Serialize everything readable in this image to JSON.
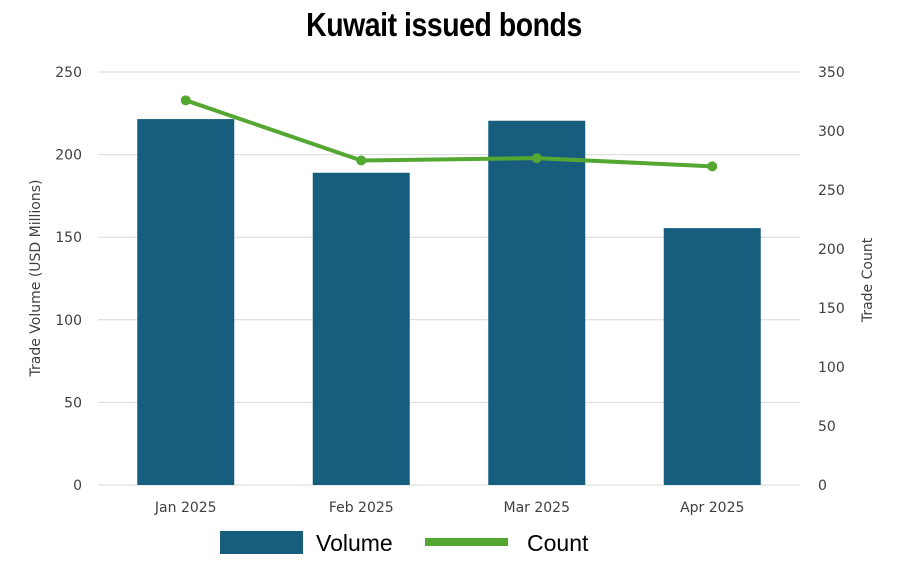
{
  "chart_data": {
    "type": "bar",
    "title": "Kuwait issued bonds",
    "categories": [
      "Jan 2025",
      "Feb 2025",
      "Mar 2025",
      "Apr 2025"
    ],
    "series": [
      {
        "name": "Volume",
        "type": "bar",
        "axis": "left",
        "color": "#175e7e",
        "values": [
          221.5,
          189,
          220.5,
          155.5
        ]
      },
      {
        "name": "Count",
        "type": "line",
        "axis": "right",
        "color": "#54a832",
        "values": [
          326,
          275,
          277,
          270
        ]
      }
    ],
    "ylabel": "Trade Volume (USD Millions)",
    "ylim": [
      0,
      250
    ],
    "yticks": [
      0,
      50,
      100,
      150,
      200,
      250
    ],
    "y2label": "Trade Count",
    "y2lim": [
      0,
      350
    ],
    "y2ticks": [
      0,
      50,
      100,
      150,
      200,
      250,
      300,
      350
    ],
    "grid": true,
    "legend_position": "bottom"
  }
}
